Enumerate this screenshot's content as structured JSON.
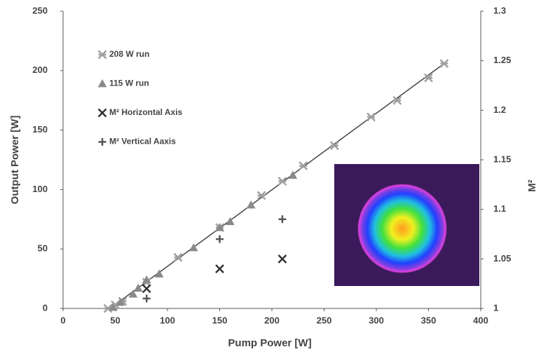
{
  "chart_data": {
    "type": "scatter",
    "x_label": "Pump Power [W]",
    "y_label": "Output Power [W]",
    "y2_label": "M²",
    "xlim": [
      0,
      400
    ],
    "xticks": [
      0,
      50,
      100,
      150,
      200,
      250,
      300,
      350,
      400
    ],
    "ylim": [
      0,
      250
    ],
    "yticks": [
      0,
      50,
      100,
      150,
      200,
      250
    ],
    "y2lim": [
      1,
      1.3
    ],
    "y2ticks": [
      1,
      1.05,
      1.1,
      1.15,
      1.2,
      1.25,
      1.3
    ],
    "series": [
      {
        "name": "208 W run",
        "color": "#a0a0a0",
        "marker": "star",
        "x": [
          43,
          50,
          57,
          80,
          110,
          150,
          190,
          210,
          230,
          260,
          295,
          320,
          350,
          365
        ],
        "values": [
          0,
          3,
          6,
          22,
          43,
          68,
          95,
          107,
          120,
          137,
          161,
          175,
          194,
          206
        ]
      },
      {
        "name": "115 W run",
        "color": "#8a8a8a",
        "marker": "triangle",
        "x": [
          48,
          55,
          67,
          72,
          80,
          92,
          125,
          150,
          160,
          180,
          220
        ],
        "values": [
          1,
          5,
          12,
          17,
          24,
          29,
          51,
          68,
          73,
          87,
          112
        ]
      },
      {
        "name": "M² Horizontal Axis",
        "color": "#333333",
        "marker": "cross",
        "axis": "y2",
        "x": [
          80,
          150,
          210
        ],
        "values": [
          1.02,
          1.04,
          1.05
        ]
      },
      {
        "name": "M² Vertical Aaxis",
        "color": "#555555",
        "marker": "plus",
        "axis": "y2",
        "x": [
          80,
          150,
          210
        ],
        "values": [
          1.01,
          1.07,
          1.09
        ]
      }
    ],
    "trendline": {
      "color": "#444444",
      "x": [
        45,
        365
      ],
      "values": [
        0,
        206
      ]
    }
  }
}
